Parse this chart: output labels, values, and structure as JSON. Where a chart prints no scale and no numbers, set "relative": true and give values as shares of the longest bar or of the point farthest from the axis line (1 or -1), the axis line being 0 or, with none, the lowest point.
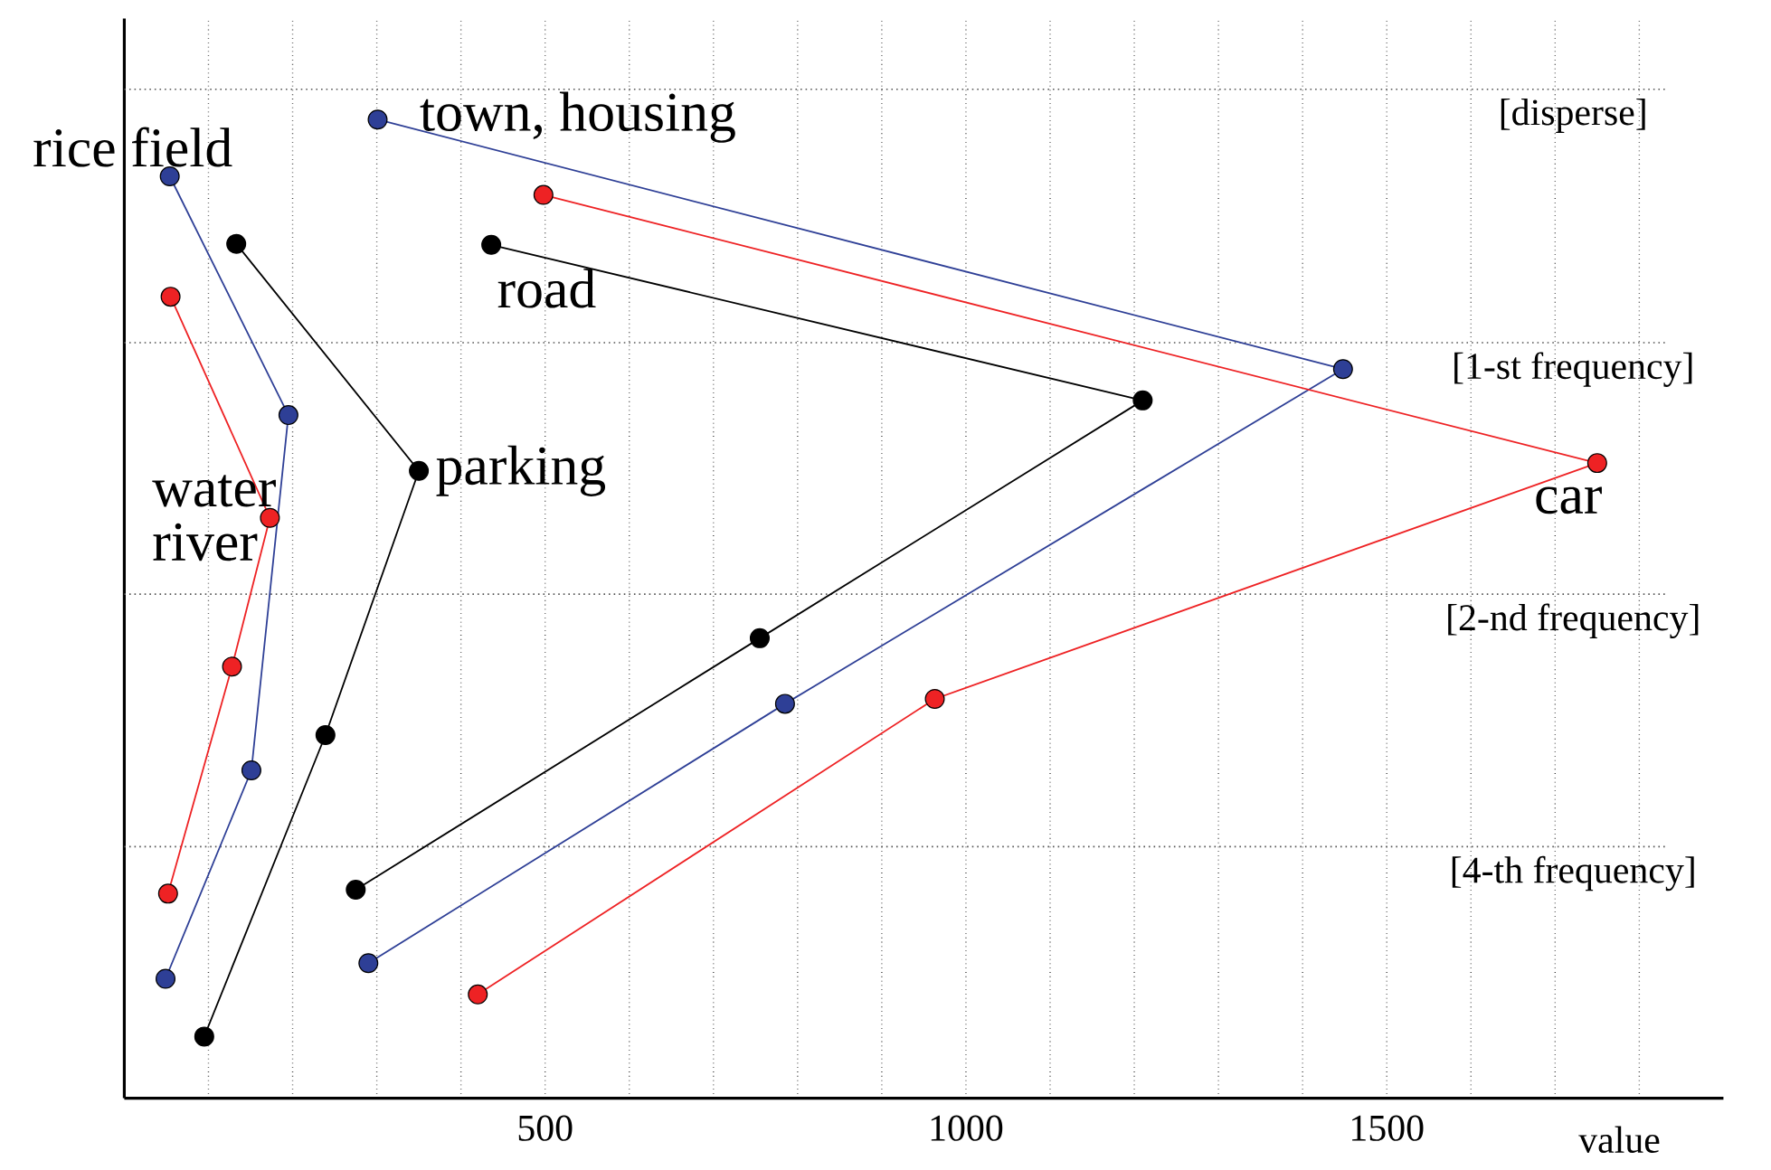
{
  "chart_data": {
    "type": "line",
    "relative": true,
    "xlabel": "value",
    "xlim": [
      0,
      1900
    ],
    "xticks": [
      {
        "value": 100,
        "label": null
      },
      {
        "value": 200,
        "label": null
      },
      {
        "value": 300,
        "label": null
      },
      {
        "value": 400,
        "label": null
      },
      500,
      {
        "value": 600,
        "label": null
      },
      {
        "value": 700,
        "label": null
      },
      {
        "value": 800,
        "label": null
      },
      {
        "value": 900,
        "label": null
      },
      1000,
      {
        "value": 1100,
        "label": null
      },
      {
        "value": 1200,
        "label": null
      },
      {
        "value": 1300,
        "label": null
      },
      {
        "value": 1400,
        "label": null
      },
      1500,
      {
        "value": 1600,
        "label": null
      },
      {
        "value": 1700,
        "label": null
      },
      {
        "value": 1800,
        "label": null
      }
    ],
    "grid": "x",
    "marker": "circle",
    "line_style": "solid",
    "series": [
      {
        "name": "rice field",
        "color": "#2e3f96",
        "x": [
          54,
          195,
          151,
          49
        ],
        "values": [
          0.942,
          0.698,
          0.335,
          0.122
        ]
      },
      {
        "name": "water river",
        "color": "#ee2224",
        "x": [
          55,
          173,
          128,
          52
        ],
        "values": [
          0.819,
          0.593,
          0.441,
          0.209
        ]
      },
      {
        "name": "parking",
        "color": "#000000",
        "x": [
          133,
          350,
          239,
          95
        ],
        "values": [
          0.873,
          0.641,
          0.371,
          0.063
        ]
      },
      {
        "name": "town, housing",
        "color": "#2e3f96",
        "x": [
          301,
          1448,
          785,
          290
        ],
        "values": [
          1,
          0.745,
          0.403,
          0.138
        ]
      },
      {
        "name": "car",
        "color": "#ee2224",
        "x": [
          498,
          1750,
          963,
          420
        ],
        "values": [
          0.923,
          0.649,
          0.408,
          0.106
        ]
      },
      {
        "name": "road",
        "color": "#000000",
        "x": [
          436,
          1210,
          755,
          275
        ],
        "values": [
          0.872,
          0.713,
          0.47,
          0.213
        ]
      }
    ],
    "ref_lines": [
      {
        "axis": "y",
        "value": 1.031,
        "label": "[disperse]",
        "color": "#555555",
        "line_style": "dotted"
      },
      {
        "axis": "y",
        "value": 0.772,
        "label": "[1-st frequency]",
        "color": "#555555",
        "line_style": "dotted"
      },
      {
        "axis": "y",
        "value": 0.515,
        "label": "[2-nd frequency]",
        "color": "#555555",
        "line_style": "dotted"
      },
      {
        "axis": "y",
        "value": 0.257,
        "label": "[4-th frequency]",
        "color": "#555555",
        "line_style": "dotted"
      }
    ]
  }
}
